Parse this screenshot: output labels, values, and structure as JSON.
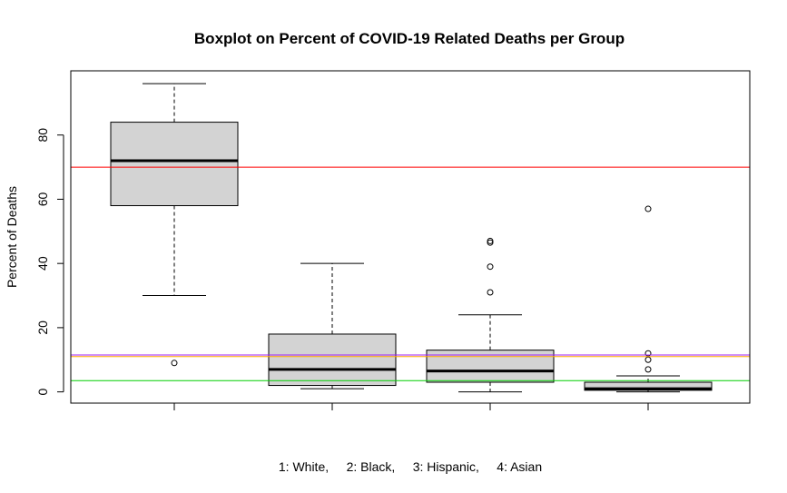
{
  "chart_data": {
    "type": "boxplot",
    "title": "Boxplot on Percent of COVID-19 Related Deaths per Group",
    "xlabel": "1: White,     2: Black,     3: Hispanic,     4: Asian",
    "ylabel": "Percent of Deaths",
    "ylim": [
      -3.5,
      100
    ],
    "yticks": [
      0,
      20,
      40,
      60,
      80
    ],
    "groups": [
      {
        "id": 1,
        "name": "White",
        "whisker_low": 30,
        "q1": 58,
        "median": 72,
        "q3": 84,
        "whisker_high": 96,
        "outliers": [
          9
        ]
      },
      {
        "id": 2,
        "name": "Black",
        "whisker_low": 1,
        "q1": 2,
        "median": 7,
        "q3": 18,
        "whisker_high": 40,
        "outliers": []
      },
      {
        "id": 3,
        "name": "Hispanic",
        "whisker_low": 0,
        "q1": 3,
        "median": 6.5,
        "q3": 13,
        "whisker_high": 24,
        "outliers": [
          31,
          39,
          46.5,
          47
        ]
      },
      {
        "id": 4,
        "name": "Asian",
        "whisker_low": 0,
        "q1": 0.5,
        "median": 1,
        "q3": 3,
        "whisker_high": 5,
        "outliers": [
          7,
          10,
          12,
          57
        ]
      }
    ],
    "reference_lines": [
      {
        "label": "red",
        "value": 70,
        "color": "#ff0000"
      },
      {
        "label": "purple",
        "value": 11.5,
        "color": "#a020f0"
      },
      {
        "label": "orange",
        "value": 11,
        "color": "#ffa500"
      },
      {
        "label": "green",
        "value": 3.5,
        "color": "#00cd00"
      }
    ],
    "box_fill": "#d3d3d3"
  }
}
